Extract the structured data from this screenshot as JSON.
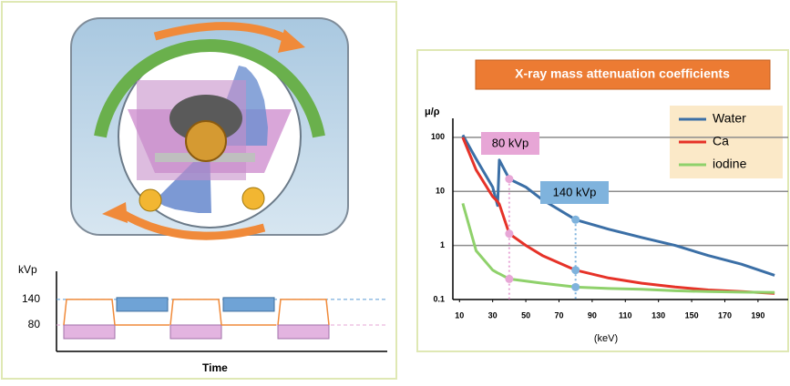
{
  "chart_data": [
    {
      "type": "line",
      "title": "X-ray mass attenuation coefficients",
      "y_label": "μ/ρ",
      "x_label": "(keV)",
      "log_y": true,
      "grid": true,
      "x": [
        12,
        20,
        30,
        33,
        34,
        40,
        50,
        60,
        80,
        100,
        120,
        140,
        160,
        180,
        200
      ],
      "series": [
        {
          "name": "Water",
          "color": "#3b6fa6",
          "values": [
            110,
            40,
            12,
            5.5,
            38,
            17,
            12,
            7,
            3,
            2.0,
            1.4,
            1.0,
            0.65,
            0.45,
            0.28
          ]
        },
        {
          "name": "Ca",
          "color": "#e63228",
          "values": [
            100,
            25,
            8,
            6.5,
            5.8,
            1.65,
            1.0,
            0.65,
            0.35,
            0.25,
            0.2,
            0.17,
            0.15,
            0.14,
            0.13
          ]
        },
        {
          "name": "iodine",
          "color": "#8fd16b",
          "values": [
            6,
            0.8,
            0.35,
            0.31,
            0.3,
            0.24,
            0.22,
            0.2,
            0.17,
            0.16,
            0.155,
            0.145,
            0.14,
            0.137,
            0.135
          ]
        }
      ],
      "annotations": [
        {
          "text": "80 kVp",
          "x": 40,
          "color": "#e7a6d6"
        },
        {
          "text": "140 kVp",
          "x": 80,
          "color": "#7fb3dd"
        }
      ],
      "xlim": [
        6,
        206
      ],
      "xticks": [
        10,
        30,
        50,
        70,
        90,
        110,
        130,
        150,
        170,
        190
      ],
      "ylim": [
        0.1,
        200
      ],
      "yticks": [
        100,
        10,
        1,
        0.1
      ]
    },
    {
      "type": "step",
      "y_label": "kVp",
      "x_label": "Time",
      "ylim": [
        18,
        206
      ],
      "yticks": [
        140,
        80
      ]
    }
  ]
}
